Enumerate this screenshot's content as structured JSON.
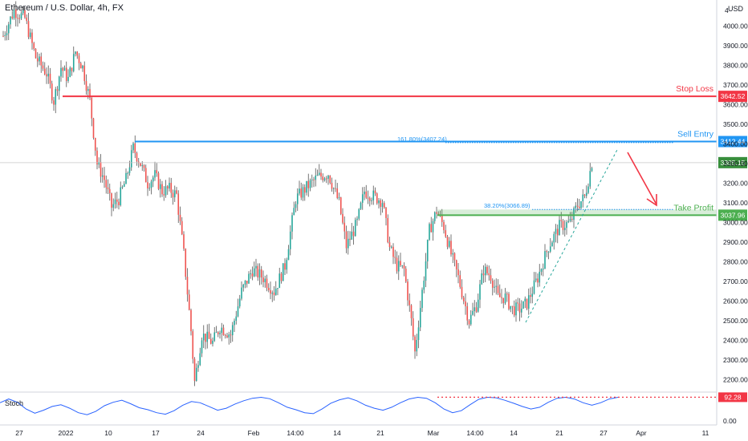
{
  "header": {
    "title": "Ethereum / U.S. Dollar, 4h, FX",
    "currency": "USD"
  },
  "colors": {
    "up": "#26a69a",
    "down": "#ef5350",
    "wick": "#555555",
    "stop": "#f23645",
    "entry": "#2196f3",
    "profit": "#4caf50",
    "stoch": "#2962ff",
    "current": "#388e3c",
    "axis_text": "#131722"
  },
  "chart_data": {
    "type": "candlestick",
    "title": "Ethereum / U.S. Dollar, 4h, FX",
    "ylim": [
      2150,
      4100
    ],
    "y_ticks": [
      2200,
      2300,
      2400,
      2500,
      2600,
      2700,
      2800,
      2900,
      3000,
      3100,
      3200,
      3300,
      3400,
      3500,
      3600,
      3700,
      3800,
      3900,
      4000
    ],
    "y_tick_labels": [
      "2200.00",
      "2300.00",
      "2400.00",
      "2500.00",
      "2600.00",
      "2700.00",
      "2800.00",
      "2900.00",
      "3000.00",
      "3100.00",
      "3200.00",
      "3300.00",
      "3400.00",
      "3500.00",
      "3600.00",
      "3700.00",
      "3800.00",
      "3900.00",
      "4000.00"
    ],
    "top_tick_label": "4",
    "x_labels": [
      "27",
      "2022",
      "10",
      "17",
      "24",
      "Feb",
      "14:00",
      "14",
      "21",
      "Mar",
      "14:00",
      "14",
      "21",
      "27",
      "Apr",
      "11"
    ],
    "waypoints": [
      [
        0,
        3950
      ],
      [
        6,
        4080
      ],
      [
        12,
        4040
      ],
      [
        18,
        3840
      ],
      [
        24,
        3760
      ],
      [
        28,
        3620
      ],
      [
        32,
        3790
      ],
      [
        36,
        3730
      ],
      [
        40,
        3870
      ],
      [
        44,
        3790
      ],
      [
        48,
        3620
      ],
      [
        52,
        3300
      ],
      [
        56,
        3220
      ],
      [
        60,
        3080
      ],
      [
        64,
        3120
      ],
      [
        68,
        3220
      ],
      [
        72,
        3380
      ],
      [
        76,
        3300
      ],
      [
        80,
        3200
      ],
      [
        84,
        3240
      ],
      [
        88,
        3160
      ],
      [
        92,
        3170
      ],
      [
        96,
        3140
      ],
      [
        100,
        2840
      ],
      [
        104,
        2450
      ],
      [
        106,
        2190
      ],
      [
        110,
        2430
      ],
      [
        116,
        2390
      ],
      [
        120,
        2470
      ],
      [
        126,
        2430
      ],
      [
        132,
        2650
      ],
      [
        138,
        2760
      ],
      [
        144,
        2720
      ],
      [
        150,
        2650
      ],
      [
        156,
        2780
      ],
      [
        162,
        3120
      ],
      [
        168,
        3180
      ],
      [
        174,
        3230
      ],
      [
        180,
        3250
      ],
      [
        186,
        3100
      ],
      [
        190,
        2880
      ],
      [
        196,
        3000
      ],
      [
        200,
        3160
      ],
      [
        204,
        3140
      ],
      [
        210,
        3110
      ],
      [
        214,
        2870
      ],
      [
        218,
        2780
      ],
      [
        222,
        2760
      ],
      [
        226,
        2500
      ],
      [
        228,
        2340
      ],
      [
        232,
        2650
      ],
      [
        236,
        2960
      ],
      [
        240,
        3060
      ],
      [
        244,
        2980
      ],
      [
        248,
        2840
      ],
      [
        252,
        2720
      ],
      [
        258,
        2500
      ],
      [
        262,
        2580
      ],
      [
        266,
        2760
      ],
      [
        270,
        2730
      ],
      [
        274,
        2620
      ],
      [
        278,
        2620
      ],
      [
        282,
        2560
      ],
      [
        286,
        2560
      ],
      [
        290,
        2590
      ],
      [
        296,
        2720
      ],
      [
        302,
        2880
      ],
      [
        308,
        2980
      ],
      [
        314,
        3000
      ],
      [
        318,
        3090
      ],
      [
        322,
        3130
      ],
      [
        326,
        3305
      ]
    ],
    "candle_start_x": 4,
    "candle_step": 2.25,
    "levels": [
      {
        "name": "stop-loss",
        "label": "Stop Loss",
        "value": 3642.52,
        "value_label": "3642.52",
        "color": "#f23645"
      },
      {
        "name": "sell-entry",
        "label": "Sell Entry",
        "value": 3412.44,
        "value_label": "3412.44",
        "color": "#2196f3"
      },
      {
        "name": "take-profit",
        "label": "Take Profit",
        "value": 3037.96,
        "value_label": "3037.96",
        "color": "#4caf50"
      }
    ],
    "current_price": 3305.15,
    "current_price_label": "3305.15",
    "fib_annotations": [
      {
        "label": "161.80%(3407.24)",
        "value": 3407.24
      },
      {
        "label": "38.20%(3066.89)",
        "value": 3066.89
      }
    ],
    "stoch": {
      "label": "Stoch",
      "ylim": [
        0,
        100
      ],
      "tick_label_bottom": "0.00",
      "current": 92.28,
      "current_label": "92.28",
      "values": [
        70,
        85,
        72,
        45,
        28,
        40,
        55,
        62,
        48,
        30,
        22,
        35,
        58,
        72,
        80,
        66,
        50,
        42,
        30,
        24,
        38,
        60,
        75,
        70,
        55,
        40,
        48,
        65,
        78,
        88,
        92,
        86,
        70,
        52,
        42,
        30,
        26,
        45,
        68,
        82,
        90,
        78,
        60,
        48,
        40,
        52,
        70,
        85,
        92,
        88,
        70,
        45,
        30,
        38,
        62,
        84,
        92,
        90,
        80,
        68,
        55,
        45,
        52,
        72,
        88,
        92,
        85,
        70,
        60,
        70,
        85,
        92
      ]
    }
  }
}
